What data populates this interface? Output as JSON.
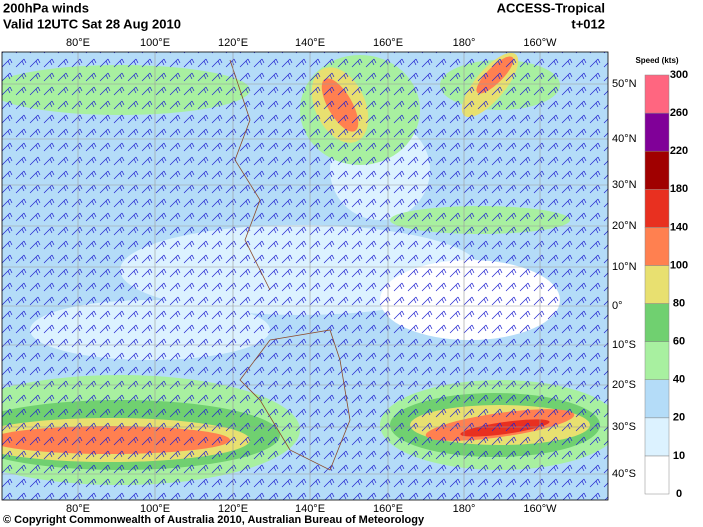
{
  "header": {
    "title": "200hPa winds",
    "valid": "Valid 12UTC Sat 28 Aug 2010",
    "model": "ACCESS-Tropical",
    "lead": "t+012"
  },
  "longitudes": [
    "80°E",
    "100°E",
    "120°E",
    "140°E",
    "160°E",
    "180°",
    "160°W"
  ],
  "latitudes": [
    "50°N",
    "40°N",
    "30°N",
    "20°N",
    "10°N",
    "0°",
    "10°S",
    "20°S",
    "30°S",
    "40°S"
  ],
  "colorbar": {
    "title": "Speed (kts)",
    "labels": [
      "0",
      "10",
      "20",
      "40",
      "60",
      "80",
      "100",
      "140",
      "180",
      "220",
      "260",
      "300"
    ],
    "colors": [
      "#ffffff",
      "#dcf2ff",
      "#b4dcf8",
      "#a8f0a0",
      "#70d070",
      "#e8e070",
      "#ff8050",
      "#e83020",
      "#a00000",
      "#800098",
      "#ff6680"
    ]
  },
  "footer": {
    "copyright": "© Copyright Commonwealth of Australia 2010, Australian Bureau of Meteorology"
  }
}
